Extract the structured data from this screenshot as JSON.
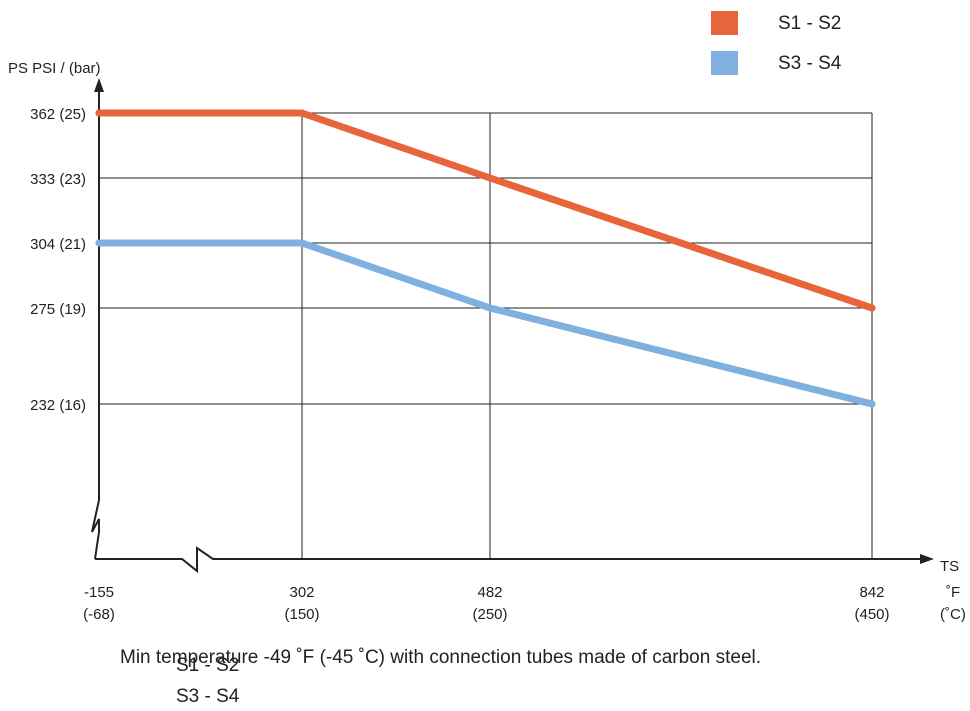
{
  "chart_data": {
    "type": "line",
    "ylabel": "PS PSI / (bar)",
    "xlabel_line1": "TS",
    "xlabel_line2": "˚F",
    "xlabel_line3": "(˚C)",
    "y_ticks": [
      {
        "value": 232,
        "label": "232 (16)"
      },
      {
        "value": 275,
        "label": "275 (19)"
      },
      {
        "value": 304,
        "label": "304 (21)"
      },
      {
        "value": 333,
        "label": "333 (23)"
      },
      {
        "value": 362,
        "label": "362 (25)"
      }
    ],
    "x_ticks": [
      {
        "value": -155,
        "label_f": "-155",
        "label_c": "(-68)"
      },
      {
        "value": 302,
        "label_f": "302",
        "label_c": "(150)"
      },
      {
        "value": 482,
        "label_f": "482",
        "label_c": "(250)"
      },
      {
        "value": 842,
        "label_f": "842",
        "label_c": "(450)"
      }
    ],
    "x_axis_break": true,
    "y_axis_break": true,
    "grid": true,
    "legend_position": "top-right",
    "series": [
      {
        "name": "S1 - S2",
        "color": "#e8643a",
        "points": [
          [
            -155,
            362
          ],
          [
            302,
            362
          ],
          [
            482,
            333
          ],
          [
            842,
            275
          ]
        ]
      },
      {
        "name": "S3 - S4",
        "color": "#7fb0e0",
        "points": [
          [
            -155,
            304
          ],
          [
            302,
            304
          ],
          [
            482,
            275
          ],
          [
            842,
            232
          ]
        ]
      }
    ]
  },
  "footnote": "Min temperature -49 ˚F (-45 ˚C) with connection tubes made of carbon steel.",
  "legend_repeat": [
    "S1 - S2",
    "S3 - S4"
  ]
}
